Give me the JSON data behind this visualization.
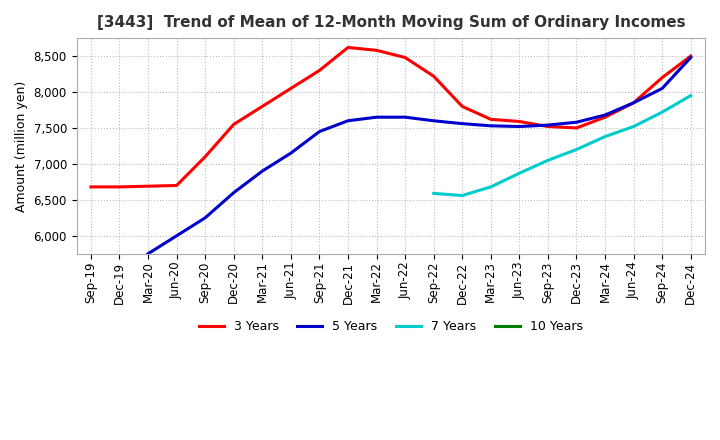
{
  "title": "[3443]  Trend of Mean of 12-Month Moving Sum of Ordinary Incomes",
  "ylabel": "Amount (million yen)",
  "ylim": [
    5750,
    8750
  ],
  "yticks": [
    6000,
    6500,
    7000,
    7500,
    8000,
    8500
  ],
  "background_color": "#ffffff",
  "grid_color": "#bbbbbb",
  "line_colors": {
    "3y": "#ff0000",
    "5y": "#0000cc",
    "7y": "#00cccc",
    "10y": "#008000"
  },
  "legend_labels": [
    "3 Years",
    "5 Years",
    "7 Years",
    "10 Years"
  ],
  "x_labels": [
    "Sep-19",
    "Dec-19",
    "Mar-20",
    "Jun-20",
    "Sep-20",
    "Dec-20",
    "Mar-21",
    "Jun-21",
    "Sep-21",
    "Dec-21",
    "Mar-22",
    "Jun-22",
    "Sep-22",
    "Dec-22",
    "Mar-23",
    "Jun-23",
    "Sep-23",
    "Dec-23",
    "Mar-24",
    "Jun-24",
    "Sep-24",
    "Dec-24"
  ],
  "data_3y": [
    6680,
    6680,
    6690,
    6700,
    7100,
    7550,
    7800,
    8050,
    8300,
    8620,
    8580,
    8480,
    8220,
    7800,
    7620,
    7590,
    7520,
    7500,
    7650,
    7850,
    8200,
    8500
  ],
  "data_5y": [
    null,
    null,
    5750,
    6000,
    6250,
    6600,
    6900,
    7150,
    7450,
    7600,
    7650,
    7650,
    7600,
    7560,
    7530,
    7520,
    7540,
    7580,
    7680,
    7850,
    8050,
    8480
  ],
  "data_7y": [
    null,
    null,
    null,
    null,
    null,
    null,
    null,
    null,
    null,
    null,
    null,
    null,
    6590,
    6560,
    6680,
    6870,
    7050,
    7200,
    7380,
    7520,
    7720,
    7950
  ],
  "data_10y": [
    null,
    null,
    null,
    null,
    null,
    null,
    null,
    null,
    null,
    null,
    null,
    null,
    null,
    null,
    null,
    null,
    null,
    null,
    null,
    null,
    null,
    null
  ]
}
